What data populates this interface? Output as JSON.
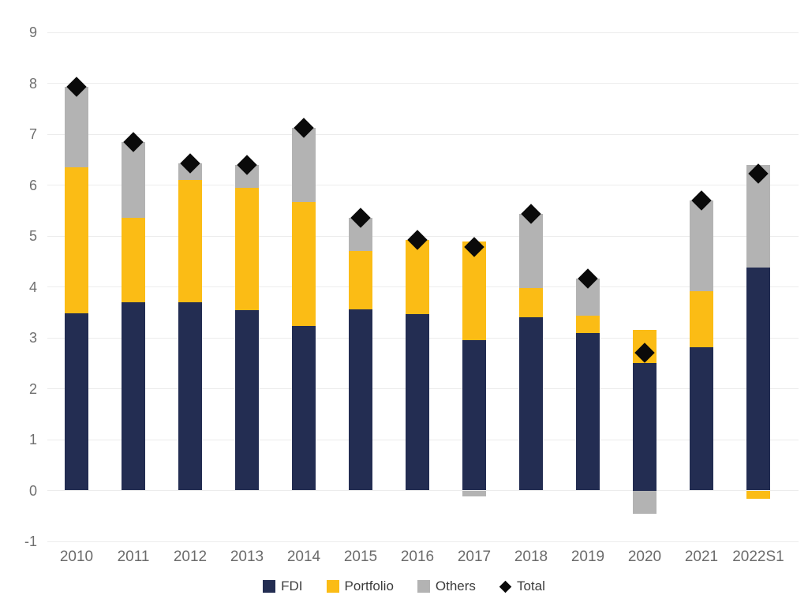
{
  "chart_data": {
    "type": "bar",
    "stacked": true,
    "grid": true,
    "legend_position": "bottom-center",
    "background_color": "#ffffff",
    "gridline_color": "#ececec",
    "axis_label_color": "#6b6b6b",
    "categories": [
      "2010",
      "2011",
      "2012",
      "2013",
      "2014",
      "2015",
      "2016",
      "2017",
      "2018",
      "2019",
      "2020",
      "2021",
      "2022S1"
    ],
    "series": [
      {
        "name": "FDI",
        "color": "#232d52",
        "values": [
          3.48,
          3.7,
          3.7,
          3.54,
          3.24,
          3.56,
          3.46,
          2.96,
          3.41,
          3.09,
          2.5,
          2.81,
          4.38
        ]
      },
      {
        "name": "Portfolio",
        "color": "#fbbc15",
        "values": [
          2.87,
          1.65,
          2.4,
          2.41,
          2.42,
          1.15,
          1.47,
          1.93,
          0.56,
          0.35,
          0.65,
          1.11,
          -0.17
        ]
      },
      {
        "name": "Others",
        "color": "#b3b3b3",
        "values": [
          1.58,
          1.5,
          0.32,
          0.45,
          1.47,
          0.64,
          0.0,
          -0.11,
          1.46,
          0.72,
          -0.45,
          1.78,
          2.01
        ]
      }
    ],
    "total": {
      "name": "Total",
      "marker": "diamond",
      "color": "#0a0a0a",
      "values": [
        7.93,
        6.85,
        6.42,
        6.4,
        7.13,
        5.35,
        4.93,
        4.78,
        5.43,
        4.16,
        2.7,
        5.7,
        6.22
      ]
    },
    "title": "",
    "xlabel": "",
    "ylabel": "",
    "ylim": [
      -1,
      9
    ],
    "yticks": [
      -1,
      0,
      1,
      2,
      3,
      4,
      5,
      6,
      7,
      8,
      9
    ]
  }
}
